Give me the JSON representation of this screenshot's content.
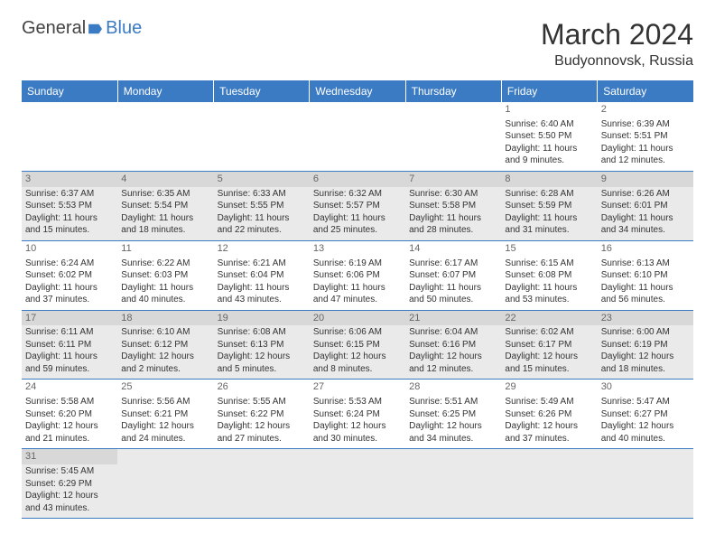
{
  "logo": {
    "text1": "General",
    "text2": "Blue"
  },
  "title": "March 2024",
  "location": "Budyonnovsk, Russia",
  "colors": {
    "accent": "#3b7bc4",
    "altRow": "#eaeaea",
    "text": "#333333"
  },
  "weekdays": [
    "Sunday",
    "Monday",
    "Tuesday",
    "Wednesday",
    "Thursday",
    "Friday",
    "Saturday"
  ],
  "weeks": [
    [
      null,
      null,
      null,
      null,
      null,
      {
        "n": "1",
        "sunrise": "Sunrise: 6:40 AM",
        "sunset": "Sunset: 5:50 PM",
        "day1": "Daylight: 11 hours",
        "day2": "and 9 minutes."
      },
      {
        "n": "2",
        "sunrise": "Sunrise: 6:39 AM",
        "sunset": "Sunset: 5:51 PM",
        "day1": "Daylight: 11 hours",
        "day2": "and 12 minutes."
      }
    ],
    [
      {
        "n": "3",
        "sunrise": "Sunrise: 6:37 AM",
        "sunset": "Sunset: 5:53 PM",
        "day1": "Daylight: 11 hours",
        "day2": "and 15 minutes."
      },
      {
        "n": "4",
        "sunrise": "Sunrise: 6:35 AM",
        "sunset": "Sunset: 5:54 PM",
        "day1": "Daylight: 11 hours",
        "day2": "and 18 minutes."
      },
      {
        "n": "5",
        "sunrise": "Sunrise: 6:33 AM",
        "sunset": "Sunset: 5:55 PM",
        "day1": "Daylight: 11 hours",
        "day2": "and 22 minutes."
      },
      {
        "n": "6",
        "sunrise": "Sunrise: 6:32 AM",
        "sunset": "Sunset: 5:57 PM",
        "day1": "Daylight: 11 hours",
        "day2": "and 25 minutes."
      },
      {
        "n": "7",
        "sunrise": "Sunrise: 6:30 AM",
        "sunset": "Sunset: 5:58 PM",
        "day1": "Daylight: 11 hours",
        "day2": "and 28 minutes."
      },
      {
        "n": "8",
        "sunrise": "Sunrise: 6:28 AM",
        "sunset": "Sunset: 5:59 PM",
        "day1": "Daylight: 11 hours",
        "day2": "and 31 minutes."
      },
      {
        "n": "9",
        "sunrise": "Sunrise: 6:26 AM",
        "sunset": "Sunset: 6:01 PM",
        "day1": "Daylight: 11 hours",
        "day2": "and 34 minutes."
      }
    ],
    [
      {
        "n": "10",
        "sunrise": "Sunrise: 6:24 AM",
        "sunset": "Sunset: 6:02 PM",
        "day1": "Daylight: 11 hours",
        "day2": "and 37 minutes."
      },
      {
        "n": "11",
        "sunrise": "Sunrise: 6:22 AM",
        "sunset": "Sunset: 6:03 PM",
        "day1": "Daylight: 11 hours",
        "day2": "and 40 minutes."
      },
      {
        "n": "12",
        "sunrise": "Sunrise: 6:21 AM",
        "sunset": "Sunset: 6:04 PM",
        "day1": "Daylight: 11 hours",
        "day2": "and 43 minutes."
      },
      {
        "n": "13",
        "sunrise": "Sunrise: 6:19 AM",
        "sunset": "Sunset: 6:06 PM",
        "day1": "Daylight: 11 hours",
        "day2": "and 47 minutes."
      },
      {
        "n": "14",
        "sunrise": "Sunrise: 6:17 AM",
        "sunset": "Sunset: 6:07 PM",
        "day1": "Daylight: 11 hours",
        "day2": "and 50 minutes."
      },
      {
        "n": "15",
        "sunrise": "Sunrise: 6:15 AM",
        "sunset": "Sunset: 6:08 PM",
        "day1": "Daylight: 11 hours",
        "day2": "and 53 minutes."
      },
      {
        "n": "16",
        "sunrise": "Sunrise: 6:13 AM",
        "sunset": "Sunset: 6:10 PM",
        "day1": "Daylight: 11 hours",
        "day2": "and 56 minutes."
      }
    ],
    [
      {
        "n": "17",
        "sunrise": "Sunrise: 6:11 AM",
        "sunset": "Sunset: 6:11 PM",
        "day1": "Daylight: 11 hours",
        "day2": "and 59 minutes."
      },
      {
        "n": "18",
        "sunrise": "Sunrise: 6:10 AM",
        "sunset": "Sunset: 6:12 PM",
        "day1": "Daylight: 12 hours",
        "day2": "and 2 minutes."
      },
      {
        "n": "19",
        "sunrise": "Sunrise: 6:08 AM",
        "sunset": "Sunset: 6:13 PM",
        "day1": "Daylight: 12 hours",
        "day2": "and 5 minutes."
      },
      {
        "n": "20",
        "sunrise": "Sunrise: 6:06 AM",
        "sunset": "Sunset: 6:15 PM",
        "day1": "Daylight: 12 hours",
        "day2": "and 8 minutes."
      },
      {
        "n": "21",
        "sunrise": "Sunrise: 6:04 AM",
        "sunset": "Sunset: 6:16 PM",
        "day1": "Daylight: 12 hours",
        "day2": "and 12 minutes."
      },
      {
        "n": "22",
        "sunrise": "Sunrise: 6:02 AM",
        "sunset": "Sunset: 6:17 PM",
        "day1": "Daylight: 12 hours",
        "day2": "and 15 minutes."
      },
      {
        "n": "23",
        "sunrise": "Sunrise: 6:00 AM",
        "sunset": "Sunset: 6:19 PM",
        "day1": "Daylight: 12 hours",
        "day2": "and 18 minutes."
      }
    ],
    [
      {
        "n": "24",
        "sunrise": "Sunrise: 5:58 AM",
        "sunset": "Sunset: 6:20 PM",
        "day1": "Daylight: 12 hours",
        "day2": "and 21 minutes."
      },
      {
        "n": "25",
        "sunrise": "Sunrise: 5:56 AM",
        "sunset": "Sunset: 6:21 PM",
        "day1": "Daylight: 12 hours",
        "day2": "and 24 minutes."
      },
      {
        "n": "26",
        "sunrise": "Sunrise: 5:55 AM",
        "sunset": "Sunset: 6:22 PM",
        "day1": "Daylight: 12 hours",
        "day2": "and 27 minutes."
      },
      {
        "n": "27",
        "sunrise": "Sunrise: 5:53 AM",
        "sunset": "Sunset: 6:24 PM",
        "day1": "Daylight: 12 hours",
        "day2": "and 30 minutes."
      },
      {
        "n": "28",
        "sunrise": "Sunrise: 5:51 AM",
        "sunset": "Sunset: 6:25 PM",
        "day1": "Daylight: 12 hours",
        "day2": "and 34 minutes."
      },
      {
        "n": "29",
        "sunrise": "Sunrise: 5:49 AM",
        "sunset": "Sunset: 6:26 PM",
        "day1": "Daylight: 12 hours",
        "day2": "and 37 minutes."
      },
      {
        "n": "30",
        "sunrise": "Sunrise: 5:47 AM",
        "sunset": "Sunset: 6:27 PM",
        "day1": "Daylight: 12 hours",
        "day2": "and 40 minutes."
      }
    ],
    [
      {
        "n": "31",
        "sunrise": "Sunrise: 5:45 AM",
        "sunset": "Sunset: 6:29 PM",
        "day1": "Daylight: 12 hours",
        "day2": "and 43 minutes."
      },
      null,
      null,
      null,
      null,
      null,
      null
    ]
  ]
}
